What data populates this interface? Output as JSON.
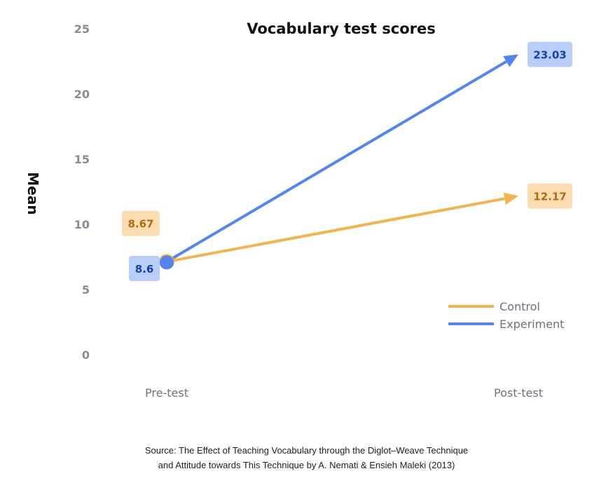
{
  "chart_data": {
    "type": "line",
    "title": "Vocabulary test scores",
    "ylabel": "Mean",
    "xlabel": "",
    "categories": [
      "Pre-test",
      "Post-test"
    ],
    "ylim": [
      0,
      25
    ],
    "yticks": [
      0,
      5,
      10,
      15,
      20,
      25
    ],
    "grid": false,
    "legend_position": "bottom-right",
    "series": [
      {
        "name": "Control",
        "values": [
          8.67,
          12.17
        ],
        "labels": [
          "8.67",
          "12.17"
        ],
        "color": "#f4b351",
        "label_bg": "#fbdcb0",
        "label_color": "#b26b10"
      },
      {
        "name": "Experiment",
        "values": [
          8.6,
          23.03
        ],
        "labels": [
          "8.6",
          "23.03"
        ],
        "color": "#5485ec",
        "label_bg": "#b8cdf7",
        "label_color": "#1c3ea8"
      }
    ]
  },
  "source": {
    "line1": "Source: The Effect of Teaching Vocabulary through the Diglot–Weave Technique",
    "line2": "and Attitude towards This Technique by A. Nemati & Ensieh Maleki (2013)"
  }
}
